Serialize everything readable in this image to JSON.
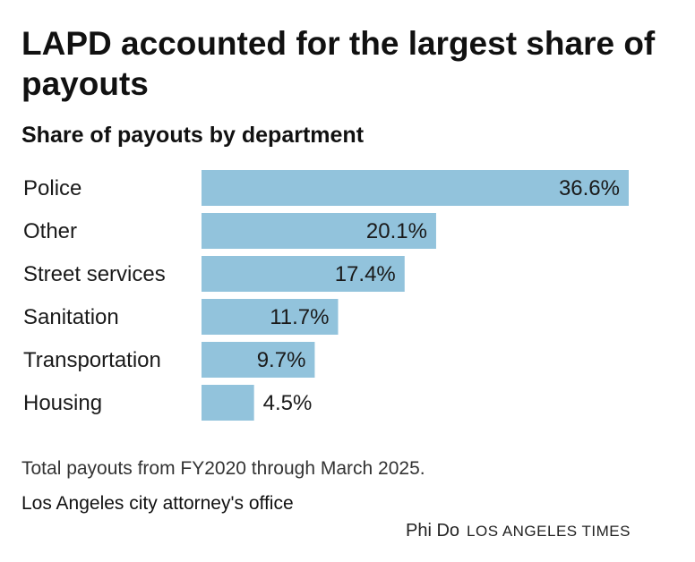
{
  "title": "LAPD accounted for the largest share of payouts",
  "subtitle": "Share of payouts by department",
  "chart_data": {
    "type": "bar",
    "orientation": "horizontal",
    "categories": [
      "Police",
      "Other",
      "Street services",
      "Sanitation",
      "Transportation",
      "Housing"
    ],
    "values": [
      36.6,
      20.1,
      17.4,
      11.7,
      9.7,
      4.5
    ],
    "value_labels": [
      "36.6%",
      "20.1%",
      "17.4%",
      "11.7%",
      "9.7%",
      "4.5%"
    ],
    "bar_color": "#92c3dc",
    "grid": false,
    "legend": "none"
  },
  "note": "Total payouts from FY2020 through March 2025.",
  "source": "Los Angeles city attorney's office",
  "credit": {
    "author": "Phi Do",
    "outlet": "LOS ANGELES TIMES"
  }
}
